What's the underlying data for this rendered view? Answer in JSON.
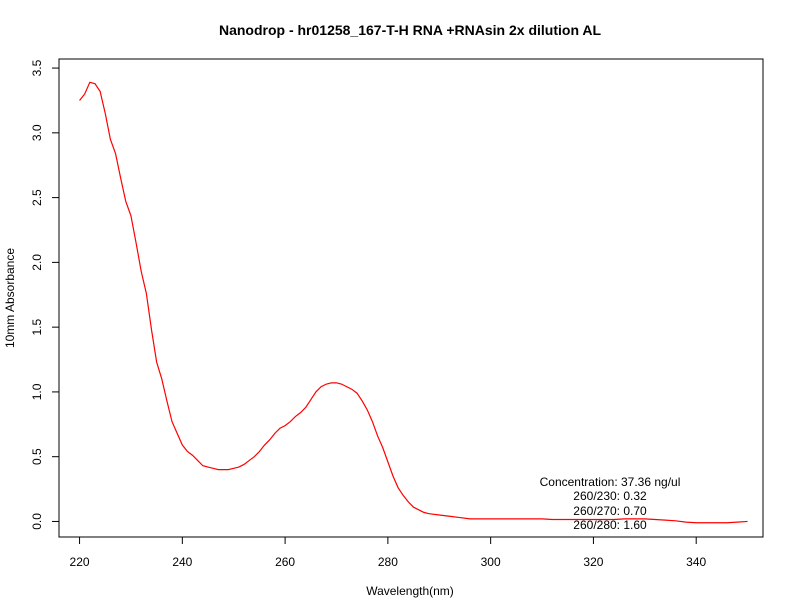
{
  "chart_data": {
    "type": "line",
    "title": "Nanodrop - hr01258_167-T-H RNA +RNAsin  2x dilution AL",
    "xlabel": "Wavelength(nm)",
    "ylabel": "10mm Absorbance",
    "xlim": [
      216,
      353
    ],
    "ylim": [
      -0.12,
      3.57
    ],
    "x_ticks": [
      220,
      240,
      260,
      280,
      300,
      320,
      340
    ],
    "x_tick_labels": [
      "220",
      "240",
      "260",
      "280",
      "300",
      "320",
      "340"
    ],
    "y_ticks": [
      0.0,
      0.5,
      1.0,
      1.5,
      2.0,
      2.5,
      3.0,
      3.5
    ],
    "y_tick_labels": [
      "0.0",
      "0.5",
      "1.0",
      "1.5",
      "2.0",
      "2.5",
      "3.0",
      "3.5"
    ],
    "grid": false,
    "line_color": "#ff0000",
    "series": [
      {
        "x": [
          220,
          221,
          222,
          223,
          224,
          225,
          226,
          227,
          228,
          229,
          230,
          231,
          232,
          233,
          234,
          235,
          236,
          237,
          238,
          239,
          240,
          241,
          242,
          243,
          244,
          245,
          246,
          247,
          248,
          249,
          250,
          251,
          252,
          253,
          254,
          255,
          256,
          257,
          258,
          259,
          260,
          261,
          262,
          263,
          264,
          265,
          266,
          267,
          268,
          269,
          270,
          271,
          272,
          273,
          274,
          275,
          276,
          277,
          278,
          279,
          280,
          281,
          282,
          283,
          284,
          285,
          286,
          287,
          288,
          290,
          292,
          294,
          296,
          298,
          300,
          302,
          304,
          306,
          308,
          310,
          312,
          314,
          316,
          318,
          320,
          322,
          324,
          326,
          328,
          330,
          332,
          334,
          336,
          338,
          340,
          342,
          344,
          346,
          348,
          350
        ],
        "values": [
          3.25,
          3.3,
          3.39,
          3.38,
          3.32,
          3.15,
          2.95,
          2.84,
          2.65,
          2.47,
          2.36,
          2.15,
          1.93,
          1.76,
          1.48,
          1.23,
          1.1,
          0.93,
          0.77,
          0.68,
          0.59,
          0.54,
          0.51,
          0.47,
          0.43,
          0.42,
          0.41,
          0.4,
          0.4,
          0.4,
          0.41,
          0.42,
          0.44,
          0.47,
          0.5,
          0.54,
          0.59,
          0.63,
          0.68,
          0.72,
          0.74,
          0.77,
          0.81,
          0.84,
          0.88,
          0.94,
          1.0,
          1.04,
          1.06,
          1.07,
          1.07,
          1.06,
          1.04,
          1.02,
          0.99,
          0.93,
          0.86,
          0.77,
          0.66,
          0.57,
          0.46,
          0.35,
          0.26,
          0.2,
          0.15,
          0.11,
          0.09,
          0.07,
          0.06,
          0.05,
          0.04,
          0.03,
          0.02,
          0.02,
          0.02,
          0.02,
          0.02,
          0.02,
          0.02,
          0.02,
          0.015,
          0.015,
          0.015,
          0.015,
          0.015,
          0.015,
          0.015,
          0.02,
          0.02,
          0.02,
          0.015,
          0.01,
          0.005,
          -0.005,
          -0.01,
          -0.01,
          -0.01,
          -0.01,
          -0.005,
          0.0
        ]
      }
    ],
    "annotations": [
      "Concentration: 37.36 ng/ul",
      "260/230: 0.32",
      "260/270: 0.70",
      "260/280: 1.60"
    ]
  }
}
